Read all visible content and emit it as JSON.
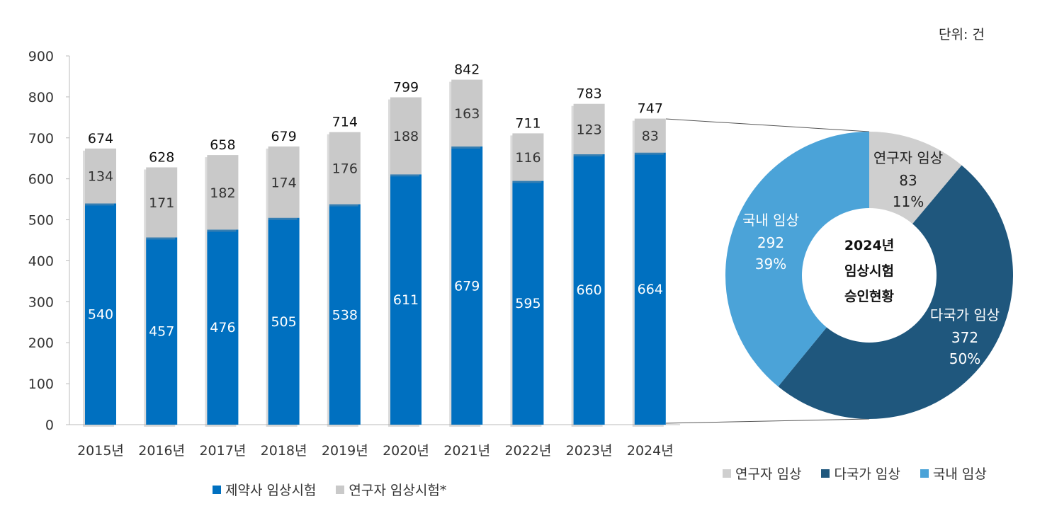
{
  "unit_label": "단위: 건",
  "chart_data": [
    {
      "type": "bar",
      "stacked": true,
      "categories": [
        "2015년",
        "2016년",
        "2017년",
        "2018년",
        "2019년",
        "2020년",
        "2021년",
        "2022년",
        "2023년",
        "2024년"
      ],
      "series": [
        {
          "name": "제약사 임상시험",
          "color": "#0070C0",
          "values": [
            540,
            457,
            476,
            505,
            538,
            611,
            679,
            595,
            660,
            664
          ]
        },
        {
          "name": "연구자 임상시험*",
          "color": "#C9C9C9",
          "values": [
            134,
            171,
            182,
            174,
            176,
            188,
            163,
            116,
            123,
            83
          ]
        }
      ],
      "totals": [
        674,
        628,
        658,
        679,
        714,
        799,
        842,
        711,
        783,
        747
      ],
      "ylim": [
        0,
        900
      ],
      "yticks": [
        0,
        100,
        200,
        300,
        400,
        500,
        600,
        700,
        800,
        900
      ],
      "grid": false,
      "legend": "bottom"
    },
    {
      "type": "pie",
      "donut": true,
      "center_label": [
        "2024년",
        "임상시험",
        "승인현황"
      ],
      "slices": [
        {
          "name": "연구자 임상",
          "value": 83,
          "percent": "11%",
          "color": "#CFCFCF"
        },
        {
          "name": "다국가 임상",
          "value": 372,
          "percent": "50%",
          "color": "#1F577D"
        },
        {
          "name": "국내 임상",
          "value": 292,
          "percent": "39%",
          "color": "#4BA3D8"
        }
      ],
      "legend": "bottom-right"
    }
  ]
}
